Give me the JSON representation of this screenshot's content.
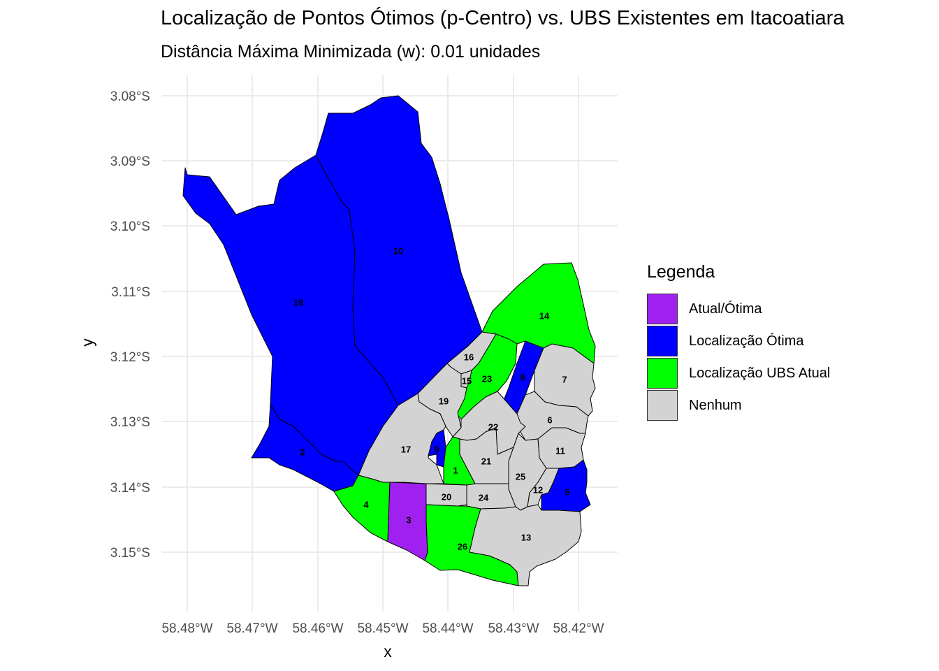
{
  "title": "Localização de Pontos Ótimos (p-Centro) vs. UBS Existentes em Itacoatiara",
  "subtitle": "Distância Máxima Minimizada (w): 0.01 unidades",
  "axes": {
    "x_title": "x",
    "y_title": "y",
    "x_ticks": [
      "58.48°W",
      "58.47°W",
      "58.46°W",
      "58.45°W",
      "58.44°W",
      "58.43°W",
      "58.42°W"
    ],
    "y_ticks": [
      "3.08°S",
      "3.09°S",
      "3.10°S",
      "3.11°S",
      "3.12°S",
      "3.13°S",
      "3.14°S",
      "3.15°S"
    ],
    "grid": true
  },
  "legend": {
    "title": "Legenda",
    "items": [
      {
        "label": "Atual/Ótima",
        "color": "#a020f0"
      },
      {
        "label": "Localização Ótima",
        "color": "#0000ff"
      },
      {
        "label": "Localização UBS Atual",
        "color": "#00ff00"
      },
      {
        "label": "Nenhum",
        "color": "#d3d3d3"
      }
    ]
  },
  "regions": [
    {
      "id": "1",
      "category": "Localização UBS Atual"
    },
    {
      "id": "2",
      "category": "Localização Ótima"
    },
    {
      "id": "3",
      "category": "Atual/Ótima"
    },
    {
      "id": "4",
      "category": "Localização UBS Atual"
    },
    {
      "id": "5",
      "category": "Localização Ótima"
    },
    {
      "id": "6",
      "category": "Nenhum"
    },
    {
      "id": "7",
      "category": "Nenhum"
    },
    {
      "id": "8",
      "category": "Localização Ótima"
    },
    {
      "id": "9",
      "category": "Localização Ótima"
    },
    {
      "id": "10",
      "category": "Localização Ótima"
    },
    {
      "id": "11",
      "category": "Nenhum"
    },
    {
      "id": "12",
      "category": "Nenhum"
    },
    {
      "id": "13",
      "category": "Nenhum"
    },
    {
      "id": "14",
      "category": "Localização UBS Atual"
    },
    {
      "id": "15",
      "category": "Nenhum"
    },
    {
      "id": "16",
      "category": "Nenhum"
    },
    {
      "id": "17",
      "category": "Nenhum"
    },
    {
      "id": "18",
      "category": "Localização Ótima"
    },
    {
      "id": "19",
      "category": "Nenhum"
    },
    {
      "id": "20",
      "category": "Nenhum"
    },
    {
      "id": "21",
      "category": "Nenhum"
    },
    {
      "id": "22",
      "category": "Nenhum"
    },
    {
      "id": "23",
      "category": "Localização UBS Atual"
    },
    {
      "id": "24",
      "category": "Nenhum"
    },
    {
      "id": "25",
      "category": "Nenhum"
    },
    {
      "id": "26",
      "category": "Localização UBS Atual"
    }
  ]
}
